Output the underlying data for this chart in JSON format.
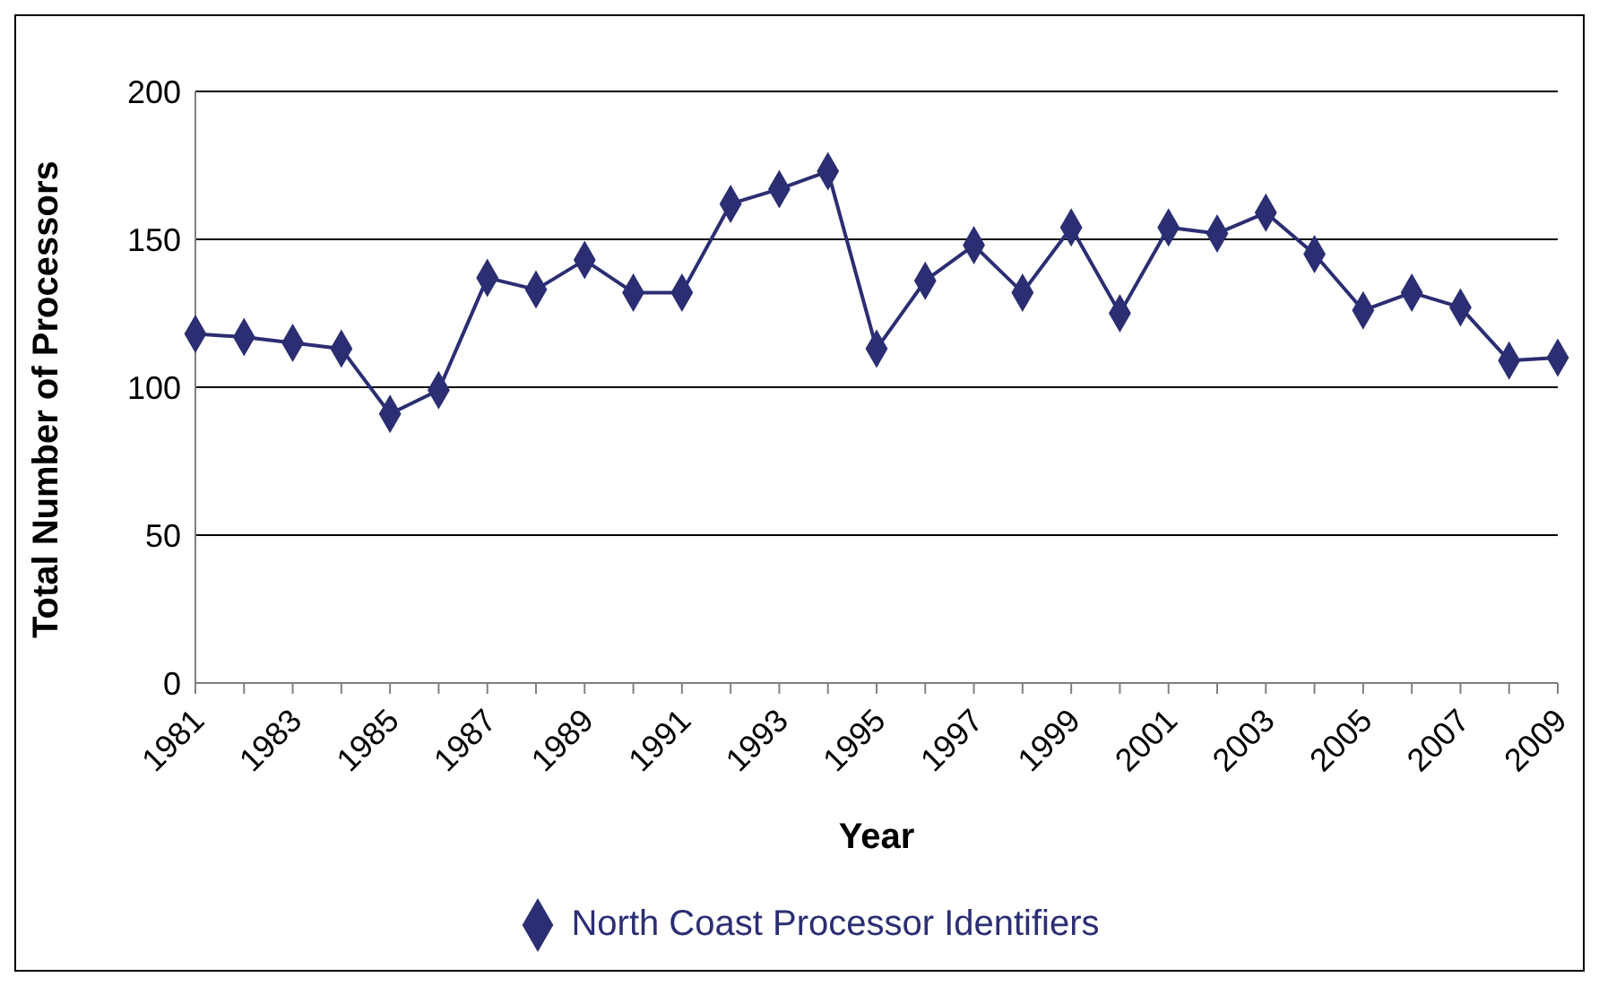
{
  "chart_data": {
    "type": "line",
    "xlabel": "Year",
    "ylabel": "Total Number of Processors",
    "categories": [
      "1981",
      null,
      "1983",
      null,
      "1985",
      null,
      "1987",
      null,
      "1989",
      null,
      "1991",
      null,
      "1993",
      null,
      "1995",
      null,
      "1997",
      null,
      "1999",
      null,
      "2001",
      null,
      "2003",
      null,
      "2005",
      null,
      "2007",
      null,
      "2009"
    ],
    "series": [
      {
        "name": "North Coast Processor Identifiers",
        "color": "#2b2e72",
        "values": [
          118,
          117,
          115,
          113,
          91,
          99,
          137,
          133,
          143,
          132,
          132,
          162,
          167,
          173,
          113,
          136,
          148,
          132,
          154,
          125,
          154,
          152,
          159,
          145,
          126,
          132,
          127,
          109,
          110
        ]
      }
    ],
    "ylim": [
      0,
      200
    ],
    "yticks": [
      0,
      50,
      100,
      150,
      200
    ],
    "grid": "y",
    "legend": "bottom",
    "marker": "diamond",
    "line_style": "solid"
  }
}
